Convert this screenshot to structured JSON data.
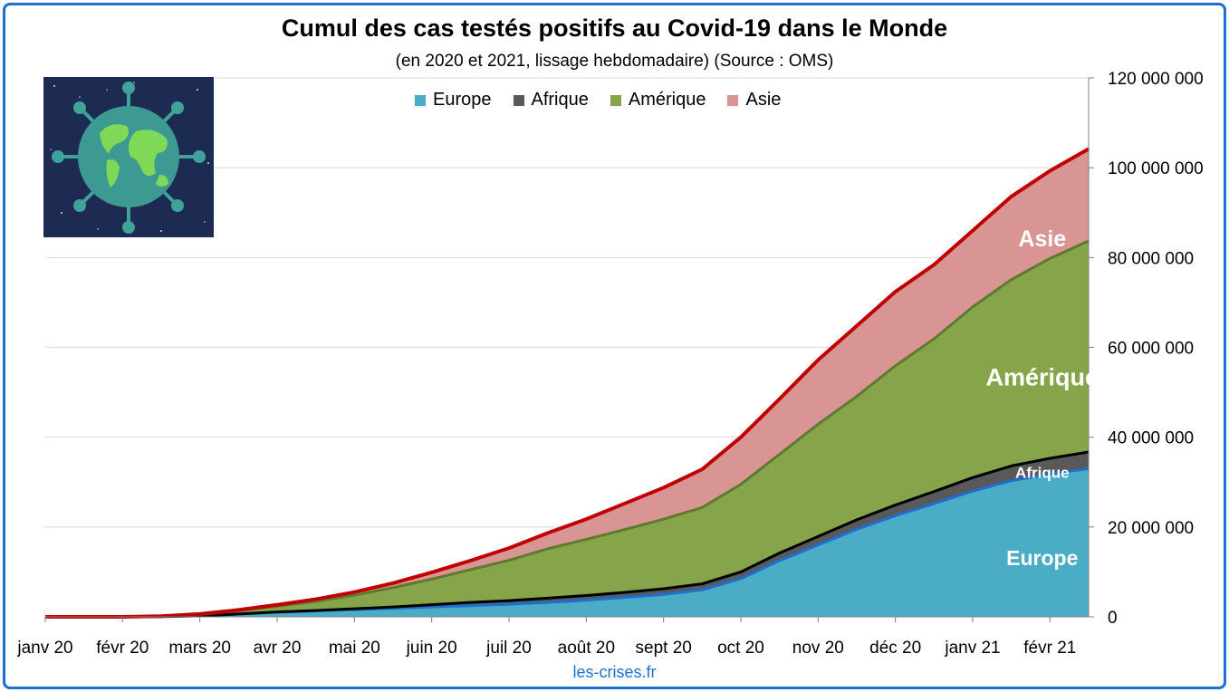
{
  "header": {
    "title": "Cumul des cas testés positifs au Covid-19 dans le Monde",
    "subtitle": "(en 2020 et 2021, lissage hebdomadaire) (Source : OMS)"
  },
  "footer": {
    "source": "les-crises.fr"
  },
  "chart_data": {
    "type": "area",
    "stacked": true,
    "title": "Cumul des cas testés positifs au Covid-19 dans le Monde",
    "subtitle": "(en 2020 et 2021, lissage hebdomadaire) (Source : OMS)",
    "x_ticks": [
      "janv 20",
      "févr 20",
      "mars 20",
      "avr 20",
      "mai 20",
      "juin 20",
      "juil 20",
      "août 20",
      "sept 20",
      "oct 20",
      "nov 20",
      "déc 20",
      "janv 21",
      "févr 21"
    ],
    "x": [
      0,
      0.5,
      1,
      1.5,
      2,
      2.5,
      3,
      3.5,
      4,
      4.5,
      5,
      5.5,
      6,
      6.5,
      7,
      7.5,
      8,
      8.5,
      9,
      9.5,
      10,
      10.5,
      11,
      11.5,
      12,
      12.5,
      13,
      13.5
    ],
    "x_unit": "months since janv 20",
    "y_ticks": [
      "0",
      "20 000 000",
      "40 000 000",
      "60 000 000",
      "80 000 000",
      "100 000 000",
      "120 000 000"
    ],
    "ylim": [
      0,
      120000000
    ],
    "grid": true,
    "legend_position": "top",
    "series": [
      {
        "name": "Europe",
        "color": "#4bacc6",
        "line_color": "#1f6fd1",
        "values": [
          0,
          0,
          0,
          50000,
          200000,
          600000,
          1000000,
          1300000,
          1600000,
          1900000,
          2200000,
          2500000,
          2800000,
          3200000,
          3700000,
          4300000,
          5000000,
          6000000,
          8500000,
          12500000,
          16000000,
          19500000,
          22500000,
          25200000,
          28000000,
          30300000,
          31800000,
          33000000
        ]
      },
      {
        "name": "Afrique",
        "color": "#595959",
        "line_color": "#000000",
        "values": [
          0,
          0,
          0,
          5000,
          20000,
          40000,
          80000,
          120000,
          200000,
          300000,
          500000,
          700000,
          800000,
          950000,
          1050000,
          1150000,
          1250000,
          1350000,
          1500000,
          1700000,
          1900000,
          2100000,
          2400000,
          2700000,
          3000000,
          3300000,
          3500000,
          3700000
        ]
      },
      {
        "name": "Amérique",
        "color": "#86a44a",
        "line_color": "#5f7a2e",
        "values": [
          0,
          0,
          0,
          60000,
          300000,
          700000,
          1300000,
          2000000,
          3000000,
          4300000,
          5700000,
          7300000,
          9000000,
          11000000,
          12500000,
          14000000,
          15500000,
          17000000,
          19500000,
          22000000,
          25000000,
          27500000,
          31000000,
          34000000,
          38000000,
          41500000,
          44500000,
          47000000
        ]
      },
      {
        "name": "Asie",
        "color": "#d99594",
        "line_color": "#c00000",
        "values": [
          0,
          0,
          0,
          30000,
          100000,
          200000,
          300000,
          500000,
          700000,
          1000000,
          1500000,
          2000000,
          2700000,
          3500000,
          4500000,
          5800000,
          7000000,
          8500000,
          10500000,
          12300000,
          14300000,
          15700000,
          16500000,
          16500000,
          17000000,
          18500000,
          19500000,
          20500000
        ]
      }
    ],
    "area_labels": [
      "Europe",
      "Afrique",
      "Amérique",
      "Asie"
    ]
  }
}
